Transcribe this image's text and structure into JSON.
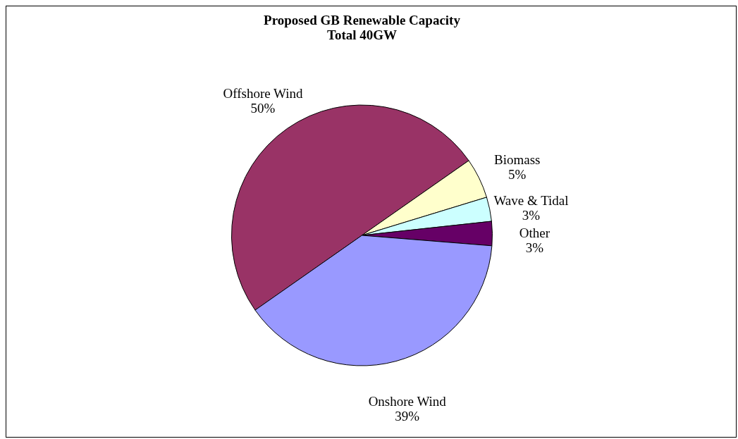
{
  "chart_data": {
    "type": "pie",
    "title": "Proposed GB Renewable Capacity",
    "subtitle": "Total 40GW",
    "categories": [
      "Offshore Wind",
      "Biomass",
      "Wave & Tidal",
      "Other",
      "Onshore Wind"
    ],
    "values": [
      50,
      5,
      3,
      3,
      39
    ],
    "value_labels": [
      "50%",
      "5%",
      "3%",
      "3%",
      "39%"
    ],
    "colors": [
      "#993366",
      "#ffffcc",
      "#ccffff",
      "#660066",
      "#9999ff"
    ]
  }
}
